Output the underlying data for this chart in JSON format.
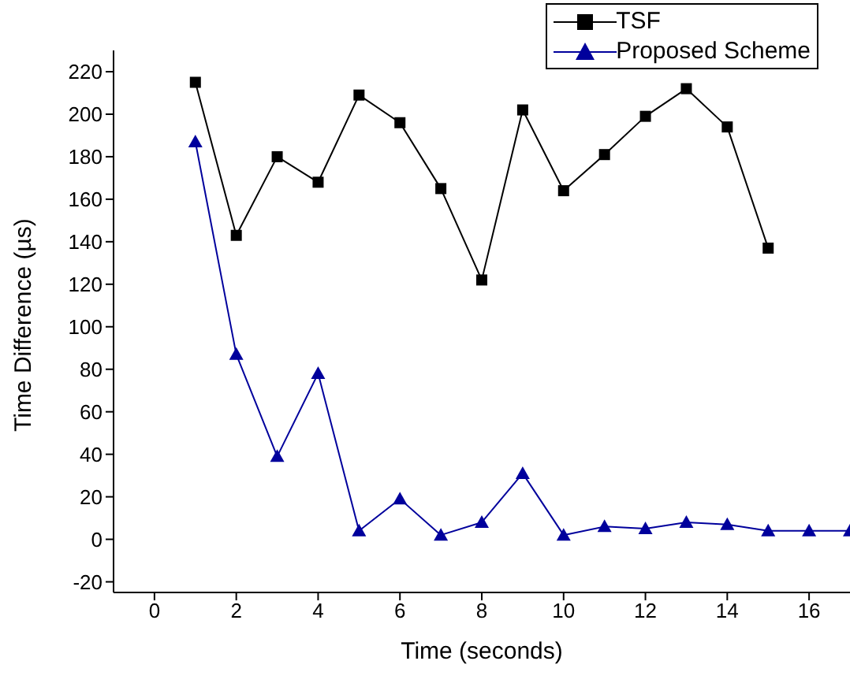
{
  "chart_data": {
    "type": "line",
    "xlabel": "Time (seconds)",
    "ylabel": "Time Difference (µs)",
    "x": [
      1,
      2,
      3,
      4,
      5,
      6,
      7,
      8,
      9,
      10,
      11,
      12,
      13,
      14,
      15,
      16,
      17
    ],
    "series": [
      {
        "name": "TSF",
        "color": "#000000",
        "marker": "square",
        "values": [
          215,
          143,
          180,
          168,
          209,
          196,
          165,
          122,
          202,
          164,
          181,
          199,
          212,
          194,
          137,
          null,
          null
        ]
      },
      {
        "name": "Proposed Scheme",
        "color": "#00009c",
        "marker": "triangle",
        "values": [
          187,
          87,
          39,
          78,
          4,
          19,
          2,
          8,
          31,
          2,
          6,
          5,
          8,
          7,
          4,
          4,
          4
        ]
      }
    ],
    "xlim": [
      -1,
      17
    ],
    "xticks": [
      0,
      2,
      4,
      6,
      8,
      10,
      12,
      14,
      16
    ],
    "ylim": [
      -25,
      230
    ],
    "yticks": [
      -20,
      0,
      20,
      40,
      60,
      80,
      100,
      120,
      140,
      160,
      180,
      200,
      220
    ],
    "grid": false,
    "legend": "top right",
    "line_style": "solid"
  }
}
